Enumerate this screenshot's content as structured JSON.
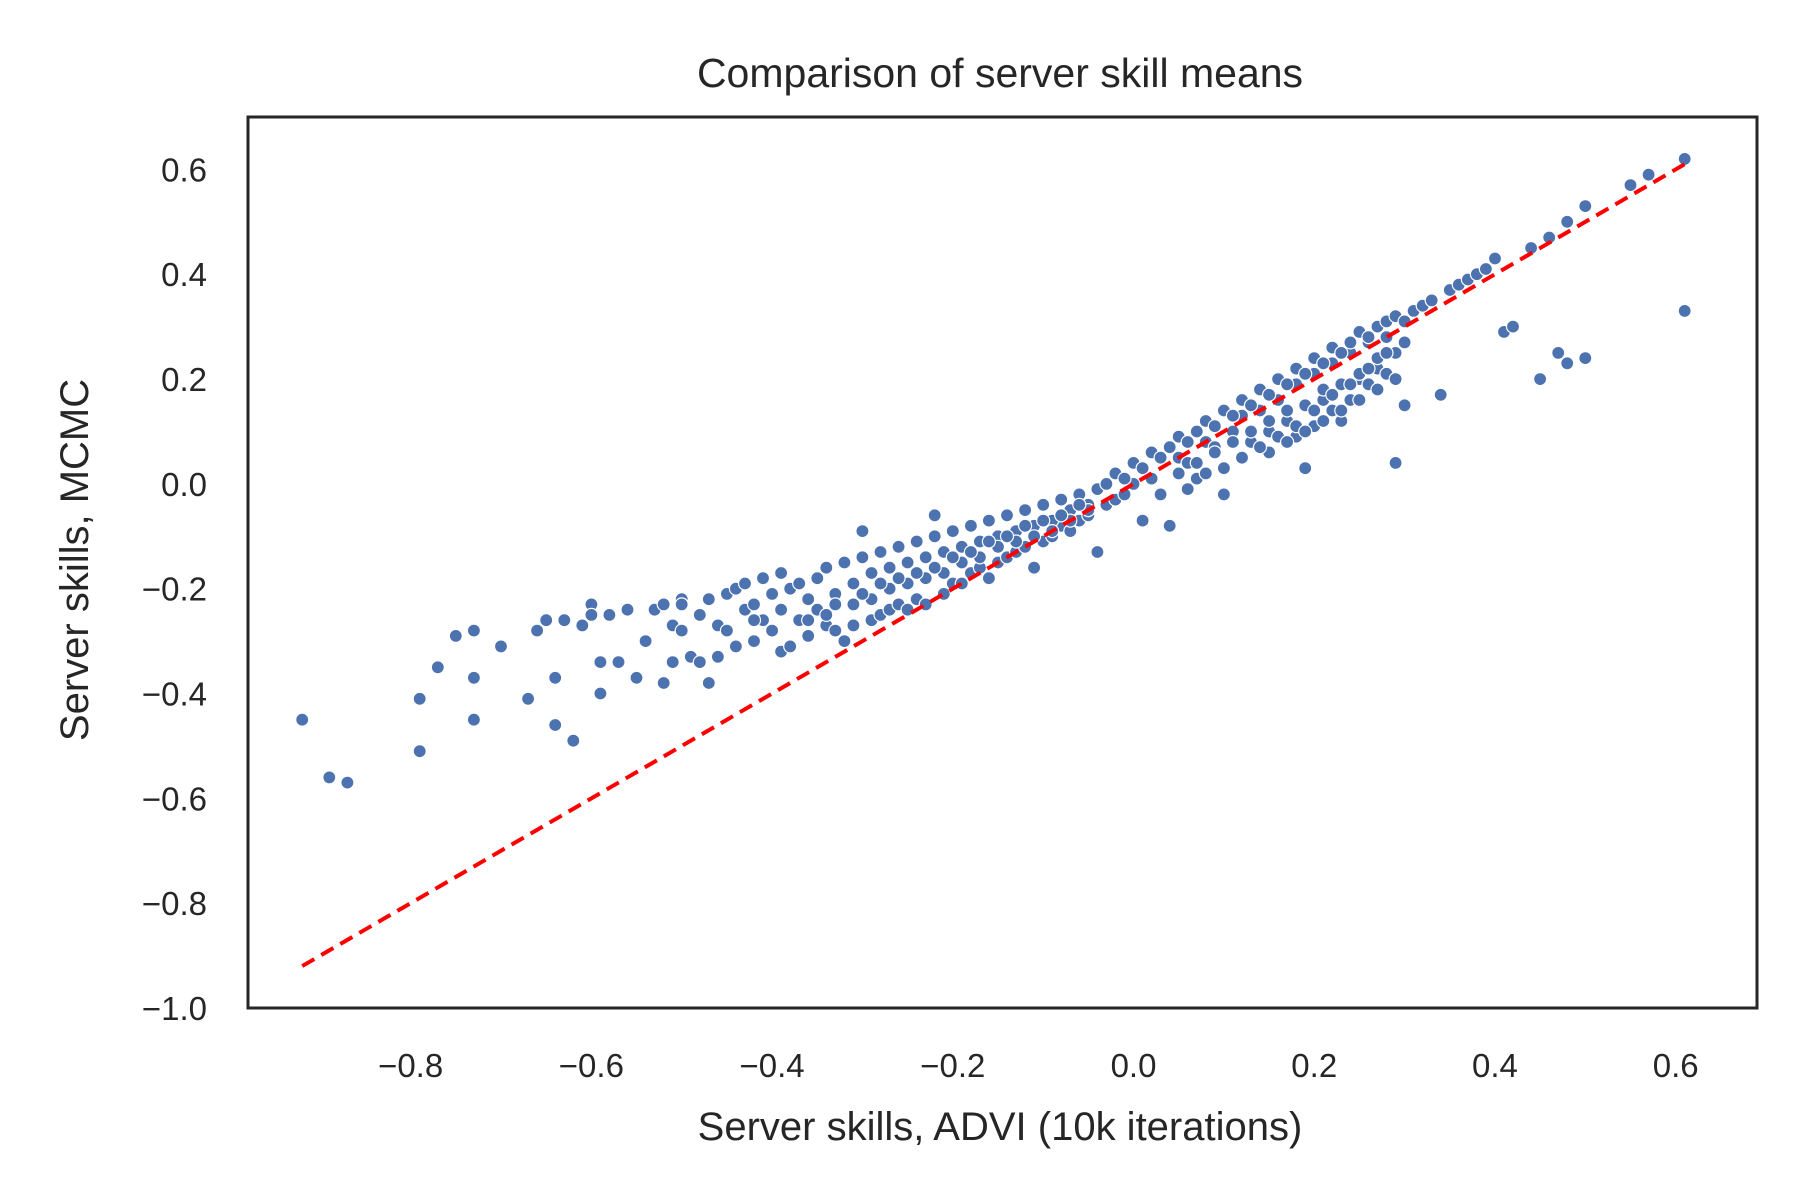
{
  "chart_data": {
    "type": "scatter",
    "title": "Comparison of server skill means",
    "xlabel": "Server skills, ADVI (10k iterations)",
    "ylabel": "Server skills, MCMC",
    "xlim": [
      -0.98,
      0.69
    ],
    "ylim": [
      -1.0,
      0.7
    ],
    "xticks": [
      -0.8,
      -0.6,
      -0.4,
      -0.2,
      0.0,
      0.2,
      0.4,
      0.6
    ],
    "yticks": [
      -1.0,
      -0.8,
      -0.6,
      -0.4,
      -0.2,
      0.0,
      0.2,
      0.4,
      0.6
    ],
    "xtick_labels": [
      "−0.8",
      "−0.6",
      "−0.4",
      "−0.2",
      "0.0",
      "0.2",
      "0.4",
      "0.6"
    ],
    "ytick_labels": [
      "−1.0",
      "−0.8",
      "−0.6",
      "−0.4",
      "−0.2",
      "0.0",
      "0.2",
      "0.4",
      "0.6"
    ],
    "grid": false,
    "colors": {
      "points": "#4c72b0",
      "point_edge": "#ffffff",
      "reference_line": "#ff0000",
      "axes": "#262626"
    },
    "reference_line": {
      "style": "dashed",
      "from": [
        -0.92,
        -0.92
      ],
      "to": [
        0.61,
        0.61
      ]
    },
    "points": [
      [
        -0.92,
        -0.45
      ],
      [
        -0.89,
        -0.56
      ],
      [
        -0.87,
        -0.57
      ],
      [
        -0.79,
        -0.41
      ],
      [
        -0.79,
        -0.51
      ],
      [
        -0.77,
        -0.35
      ],
      [
        -0.75,
        -0.29
      ],
      [
        -0.73,
        -0.28
      ],
      [
        -0.73,
        -0.37
      ],
      [
        -0.73,
        -0.45
      ],
      [
        -0.7,
        -0.31
      ],
      [
        -0.67,
        -0.41
      ],
      [
        -0.66,
        -0.28
      ],
      [
        -0.65,
        -0.26
      ],
      [
        -0.64,
        -0.46
      ],
      [
        -0.64,
        -0.37
      ],
      [
        -0.63,
        -0.26
      ],
      [
        -0.62,
        -0.49
      ],
      [
        -0.61,
        -0.27
      ],
      [
        -0.6,
        -0.23
      ],
      [
        -0.6,
        -0.25
      ],
      [
        -0.59,
        -0.34
      ],
      [
        -0.59,
        -0.4
      ],
      [
        -0.58,
        -0.25
      ],
      [
        -0.57,
        -0.34
      ],
      [
        -0.56,
        -0.24
      ],
      [
        -0.55,
        -0.37
      ],
      [
        -0.54,
        -0.3
      ],
      [
        -0.53,
        -0.24
      ],
      [
        -0.52,
        -0.23
      ],
      [
        -0.52,
        -0.38
      ],
      [
        -0.51,
        -0.27
      ],
      [
        -0.51,
        -0.34
      ],
      [
        -0.5,
        -0.22
      ],
      [
        -0.5,
        -0.28
      ],
      [
        -0.49,
        -0.33
      ],
      [
        -0.48,
        -0.34
      ],
      [
        -0.47,
        -0.38
      ],
      [
        -0.46,
        -0.33
      ],
      [
        -0.46,
        -0.27
      ],
      [
        -0.45,
        -0.28
      ],
      [
        -0.44,
        -0.31
      ],
      [
        -0.43,
        -0.24
      ],
      [
        -0.42,
        -0.3
      ],
      [
        -0.41,
        -0.26
      ],
      [
        -0.4,
        -0.28
      ],
      [
        -0.39,
        -0.32
      ],
      [
        -0.38,
        -0.31
      ],
      [
        -0.37,
        -0.26
      ],
      [
        -0.36,
        -0.29
      ],
      [
        -0.35,
        -0.24
      ],
      [
        -0.34,
        -0.27
      ],
      [
        -0.33,
        -0.28
      ],
      [
        -0.32,
        -0.3
      ],
      [
        -0.31,
        -0.27
      ],
      [
        -0.3,
        -0.09
      ],
      [
        -0.29,
        -0.26
      ],
      [
        -0.28,
        -0.25
      ],
      [
        -0.27,
        -0.24
      ],
      [
        -0.26,
        -0.23
      ],
      [
        -0.25,
        -0.24
      ],
      [
        -0.24,
        -0.22
      ],
      [
        -0.23,
        -0.23
      ],
      [
        -0.22,
        -0.06
      ],
      [
        -0.21,
        -0.21
      ],
      [
        -0.2,
        -0.19
      ],
      [
        -0.19,
        -0.19
      ],
      [
        -0.18,
        -0.17
      ],
      [
        -0.17,
        -0.16
      ],
      [
        -0.16,
        -0.18
      ],
      [
        -0.15,
        -0.15
      ],
      [
        -0.14,
        -0.14
      ],
      [
        -0.13,
        -0.13
      ],
      [
        -0.12,
        -0.12
      ],
      [
        -0.11,
        -0.16
      ],
      [
        -0.1,
        -0.11
      ],
      [
        -0.09,
        -0.1
      ],
      [
        -0.08,
        -0.08
      ],
      [
        -0.07,
        -0.09
      ],
      [
        -0.06,
        -0.07
      ],
      [
        -0.05,
        -0.06
      ],
      [
        -0.04,
        -0.13
      ],
      [
        -0.03,
        -0.04
      ],
      [
        -0.02,
        -0.03
      ],
      [
        -0.01,
        -0.02
      ],
      [
        0.0,
        0.0
      ],
      [
        0.01,
        -0.07
      ],
      [
        0.02,
        0.01
      ],
      [
        0.03,
        -0.02
      ],
      [
        0.04,
        -0.08
      ],
      [
        0.05,
        0.05
      ],
      [
        0.06,
        0.04
      ],
      [
        0.07,
        0.01
      ],
      [
        0.08,
        0.08
      ],
      [
        0.09,
        0.07
      ],
      [
        0.1,
        -0.02
      ],
      [
        0.11,
        0.1
      ],
      [
        0.12,
        0.13
      ],
      [
        0.13,
        0.08
      ],
      [
        0.14,
        0.14
      ],
      [
        0.15,
        0.1
      ],
      [
        0.16,
        0.16
      ],
      [
        0.17,
        0.12
      ],
      [
        0.18,
        0.19
      ],
      [
        0.19,
        0.03
      ],
      [
        0.2,
        0.21
      ],
      [
        0.21,
        0.16
      ],
      [
        0.22,
        0.23
      ],
      [
        0.23,
        0.12
      ],
      [
        0.24,
        0.25
      ],
      [
        0.25,
        0.2
      ],
      [
        0.26,
        0.27
      ],
      [
        0.27,
        0.22
      ],
      [
        0.28,
        0.28
      ],
      [
        0.29,
        0.04
      ],
      [
        0.3,
        0.15
      ],
      [
        0.31,
        0.33
      ],
      [
        0.32,
        0.34
      ],
      [
        0.33,
        0.35
      ],
      [
        0.34,
        0.17
      ],
      [
        0.35,
        0.37
      ],
      [
        0.36,
        0.38
      ],
      [
        0.37,
        0.39
      ],
      [
        0.38,
        0.4
      ],
      [
        0.39,
        0.41
      ],
      [
        0.4,
        0.43
      ],
      [
        0.41,
        0.29
      ],
      [
        0.42,
        0.3
      ],
      [
        0.44,
        0.45
      ],
      [
        0.45,
        0.2
      ],
      [
        0.46,
        0.47
      ],
      [
        0.47,
        0.25
      ],
      [
        0.48,
        0.23
      ],
      [
        0.48,
        0.5
      ],
      [
        0.5,
        0.24
      ],
      [
        0.5,
        0.53
      ],
      [
        0.55,
        0.57
      ],
      [
        0.57,
        0.59
      ],
      [
        0.61,
        0.62
      ],
      [
        0.61,
        0.33
      ],
      [
        -0.5,
        -0.23
      ],
      [
        -0.48,
        -0.25
      ],
      [
        -0.47,
        -0.22
      ],
      [
        -0.45,
        -0.21
      ],
      [
        -0.44,
        -0.2
      ],
      [
        -0.43,
        -0.19
      ],
      [
        -0.42,
        -0.23
      ],
      [
        -0.41,
        -0.18
      ],
      [
        -0.4,
        -0.21
      ],
      [
        -0.39,
        -0.17
      ],
      [
        -0.38,
        -0.2
      ],
      [
        -0.37,
        -0.19
      ],
      [
        -0.36,
        -0.22
      ],
      [
        -0.35,
        -0.18
      ],
      [
        -0.34,
        -0.16
      ],
      [
        -0.33,
        -0.21
      ],
      [
        -0.32,
        -0.15
      ],
      [
        -0.31,
        -0.19
      ],
      [
        -0.3,
        -0.14
      ],
      [
        -0.29,
        -0.17
      ],
      [
        -0.28,
        -0.13
      ],
      [
        -0.27,
        -0.16
      ],
      [
        -0.26,
        -0.12
      ],
      [
        -0.25,
        -0.15
      ],
      [
        -0.24,
        -0.11
      ],
      [
        -0.23,
        -0.14
      ],
      [
        -0.22,
        -0.1
      ],
      [
        -0.21,
        -0.13
      ],
      [
        -0.2,
        -0.09
      ],
      [
        -0.19,
        -0.12
      ],
      [
        -0.18,
        -0.08
      ],
      [
        -0.17,
        -0.11
      ],
      [
        -0.16,
        -0.07
      ],
      [
        -0.15,
        -0.1
      ],
      [
        -0.14,
        -0.06
      ],
      [
        -0.13,
        -0.09
      ],
      [
        -0.12,
        -0.05
      ],
      [
        -0.11,
        -0.08
      ],
      [
        -0.1,
        -0.04
      ],
      [
        -0.09,
        -0.07
      ],
      [
        -0.08,
        -0.03
      ],
      [
        -0.07,
        -0.05
      ],
      [
        -0.06,
        -0.02
      ],
      [
        -0.05,
        -0.04
      ],
      [
        -0.04,
        -0.01
      ],
      [
        -0.03,
        0.0
      ],
      [
        -0.02,
        0.02
      ],
      [
        -0.01,
        0.01
      ],
      [
        0.0,
        0.04
      ],
      [
        0.01,
        0.03
      ],
      [
        0.02,
        0.06
      ],
      [
        0.03,
        0.05
      ],
      [
        0.04,
        0.07
      ],
      [
        0.05,
        0.09
      ],
      [
        0.06,
        0.08
      ],
      [
        0.07,
        0.1
      ],
      [
        0.08,
        0.12
      ],
      [
        0.09,
        0.11
      ],
      [
        0.1,
        0.14
      ],
      [
        0.11,
        0.13
      ],
      [
        0.12,
        0.16
      ],
      [
        0.13,
        0.15
      ],
      [
        0.14,
        0.18
      ],
      [
        0.15,
        0.17
      ],
      [
        0.16,
        0.2
      ],
      [
        0.17,
        0.19
      ],
      [
        0.18,
        0.22
      ],
      [
        0.19,
        0.21
      ],
      [
        0.2,
        0.24
      ],
      [
        0.21,
        0.23
      ],
      [
        0.22,
        0.26
      ],
      [
        0.23,
        0.25
      ],
      [
        0.24,
        0.27
      ],
      [
        0.25,
        0.29
      ],
      [
        0.26,
        0.28
      ],
      [
        0.27,
        0.3
      ],
      [
        0.28,
        0.31
      ],
      [
        0.29,
        0.32
      ],
      [
        0.3,
        0.31
      ],
      [
        -0.36,
        -0.26
      ],
      [
        -0.34,
        -0.25
      ],
      [
        -0.31,
        -0.23
      ],
      [
        -0.29,
        -0.22
      ],
      [
        -0.27,
        -0.2
      ],
      [
        -0.25,
        -0.19
      ],
      [
        -0.23,
        -0.18
      ],
      [
        -0.21,
        -0.17
      ],
      [
        -0.19,
        -0.15
      ],
      [
        -0.17,
        -0.14
      ],
      [
        -0.15,
        -0.12
      ],
      [
        -0.13,
        -0.11
      ],
      [
        -0.11,
        -0.1
      ],
      [
        -0.09,
        -0.09
      ],
      [
        -0.07,
        -0.07
      ],
      [
        -0.05,
        -0.05
      ],
      [
        0.05,
        0.02
      ],
      [
        0.07,
        0.04
      ],
      [
        0.09,
        0.06
      ],
      [
        0.11,
        0.08
      ],
      [
        0.13,
        0.1
      ],
      [
        0.15,
        0.12
      ],
      [
        0.17,
        0.14
      ],
      [
        0.19,
        0.15
      ],
      [
        0.21,
        0.18
      ],
      [
        0.23,
        0.19
      ],
      [
        0.25,
        0.21
      ],
      [
        0.27,
        0.24
      ],
      [
        0.29,
        0.25
      ],
      [
        0.12,
        0.05
      ],
      [
        0.15,
        0.06
      ],
      [
        0.18,
        0.09
      ],
      [
        0.2,
        0.11
      ],
      [
        0.22,
        0.14
      ],
      [
        0.24,
        0.16
      ],
      [
        0.26,
        0.19
      ],
      [
        0.28,
        0.21
      ],
      [
        0.1,
        0.03
      ],
      [
        0.08,
        0.02
      ],
      [
        0.06,
        -0.01
      ],
      [
        -0.42,
        -0.26
      ],
      [
        -0.39,
        -0.24
      ],
      [
        -0.33,
        -0.23
      ],
      [
        -0.3,
        -0.21
      ],
      [
        -0.28,
        -0.19
      ],
      [
        -0.26,
        -0.18
      ],
      [
        -0.24,
        -0.17
      ],
      [
        -0.22,
        -0.16
      ],
      [
        -0.2,
        -0.14
      ],
      [
        -0.18,
        -0.13
      ],
      [
        -0.16,
        -0.11
      ],
      [
        -0.14,
        -0.1
      ],
      [
        -0.12,
        -0.08
      ],
      [
        -0.1,
        -0.07
      ],
      [
        -0.08,
        -0.06
      ],
      [
        -0.06,
        -0.04
      ],
      [
        0.16,
        0.09
      ],
      [
        0.2,
        0.14
      ],
      [
        0.22,
        0.17
      ],
      [
        0.24,
        0.19
      ],
      [
        0.26,
        0.22
      ],
      [
        0.28,
        0.25
      ],
      [
        0.3,
        0.27
      ],
      [
        0.14,
        0.07
      ],
      [
        0.18,
        0.11
      ],
      [
        0.25,
        0.16
      ],
      [
        0.27,
        0.18
      ],
      [
        0.29,
        0.2
      ],
      [
        0.23,
        0.14
      ],
      [
        0.21,
        0.12
      ],
      [
        0.19,
        0.1
      ],
      [
        0.17,
        0.08
      ]
    ]
  }
}
